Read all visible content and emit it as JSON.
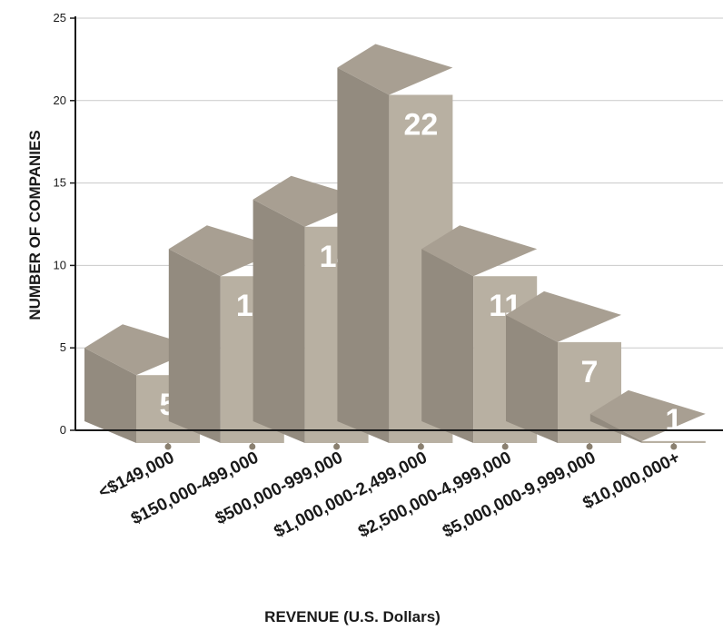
{
  "chart_data": {
    "type": "bar",
    "title": "",
    "xlabel": "REVENUE (U.S. Dollars)",
    "ylabel": "NUMBER OF COMPANIES",
    "ylim": [
      0,
      25
    ],
    "yticks": [
      "0",
      "5",
      "10",
      "15",
      "20",
      "25"
    ],
    "categories": [
      "<$149,000",
      "$150,000-499,000",
      "$500,000-999,000",
      "$1,000,000-2,499,000",
      "$2,500,000-4,999,000",
      "$5,000,000-9,999,000",
      "$10,000,000+"
    ],
    "values": [
      5,
      11,
      14,
      22,
      11,
      7,
      1
    ],
    "value_labels": [
      "5",
      "11",
      "14",
      "22",
      "11",
      "7",
      "1"
    ],
    "grid": true,
    "colors": {
      "front": "#b8b0a2",
      "side": "#938b7f",
      "top": "#a89f92",
      "grid": "#c9c9c9",
      "axis": "#1a1a1a",
      "marker": "#8a8070"
    }
  }
}
